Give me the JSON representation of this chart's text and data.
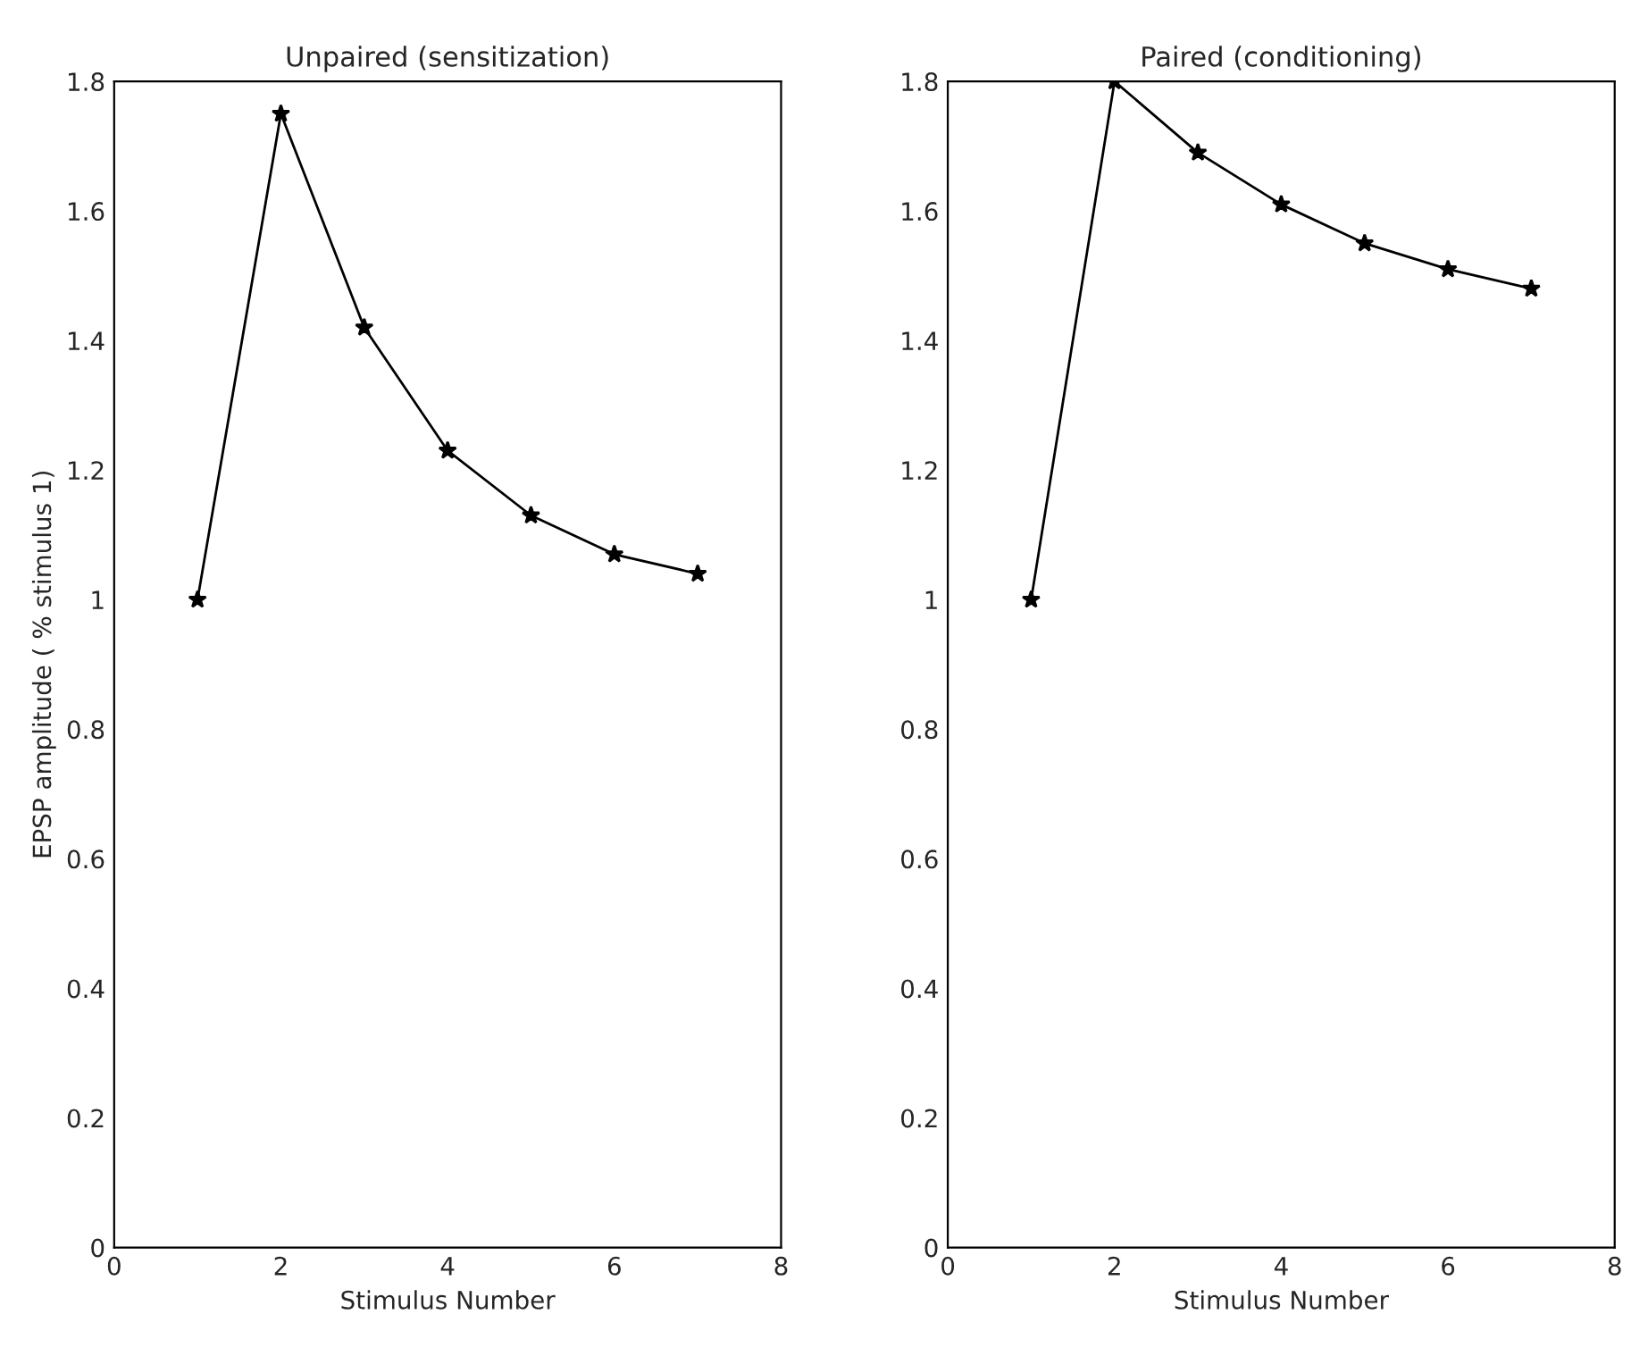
{
  "chart_data": [
    {
      "type": "line",
      "title": "Unpaired (sensitization)",
      "xlabel": "Stimulus Number",
      "ylabel": "EPSP amplitude ( % stimulus 1)",
      "x": [
        1,
        2,
        3,
        4,
        5,
        6,
        7
      ],
      "series": [
        {
          "color": "#000000",
          "values": [
            1.0,
            1.75,
            1.42,
            1.23,
            1.13,
            1.07,
            1.04
          ]
        }
      ],
      "xlim": [
        0,
        8
      ],
      "xticks": [
        0,
        2,
        4,
        6,
        8
      ],
      "ylim": [
        0,
        1.8
      ],
      "yticks": [
        0,
        0.2,
        0.4,
        0.6,
        0.8,
        1,
        1.2,
        1.4,
        1.6,
        1.8
      ],
      "marker": "star",
      "line_style": "solid",
      "grid": false,
      "legend": false
    },
    {
      "type": "line",
      "title": "Paired (conditioning)",
      "xlabel": "Stimulus Number",
      "x": [
        1,
        2,
        3,
        4,
        5,
        6,
        7
      ],
      "series": [
        {
          "color": "#000000",
          "values": [
            1.0,
            1.8,
            1.69,
            1.61,
            1.55,
            1.51,
            1.48
          ]
        }
      ],
      "xlim": [
        0,
        8
      ],
      "xticks": [
        0,
        2,
        4,
        6,
        8
      ],
      "ylim": [
        0,
        1.8
      ],
      "yticks": [
        0,
        0.2,
        0.4,
        0.6,
        0.8,
        1,
        1.2,
        1.4,
        1.6,
        1.8
      ],
      "marker": "star",
      "line_style": "solid",
      "grid": false,
      "legend": false
    }
  ]
}
